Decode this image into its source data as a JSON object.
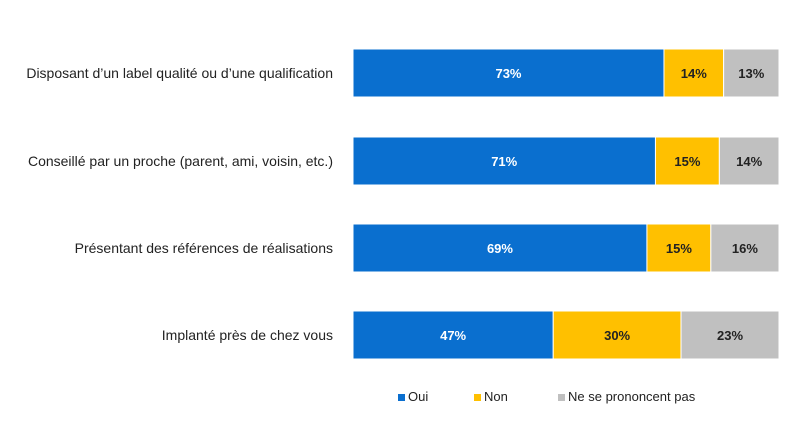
{
  "chart_data": {
    "type": "bar",
    "orientation": "horizontal",
    "stacked": true,
    "title": "",
    "xlabel": "",
    "ylabel": "",
    "xlim": [
      0,
      100
    ],
    "grid": false,
    "legend_position": "bottom",
    "categories": [
      "Disposant d’un label qualité ou d’une qualification",
      "Conseillé par un proche (parent, ami, voisin, etc.)",
      "Présentant des références de réalisations",
      "Implanté près de chez vous"
    ],
    "series": [
      {
        "name": "Oui",
        "color": "#0a6fcf",
        "label_color": "#ffffff",
        "values": [
          73,
          71,
          69,
          47
        ],
        "labels": [
          "73%",
          "71%",
          "69%",
          "47%"
        ]
      },
      {
        "name": "Non",
        "color": "#ffc000",
        "label_color": "#222222",
        "values": [
          14,
          15,
          15,
          30
        ],
        "labels": [
          "14%",
          "15%",
          "15%",
          "30%"
        ]
      },
      {
        "name": "Ne se prononcent pas",
        "color": "#c0c0c0",
        "label_color": "#222222",
        "values": [
          13,
          14,
          16,
          23
        ],
        "labels": [
          "13%",
          "14%",
          "16%",
          "23%"
        ]
      }
    ]
  }
}
